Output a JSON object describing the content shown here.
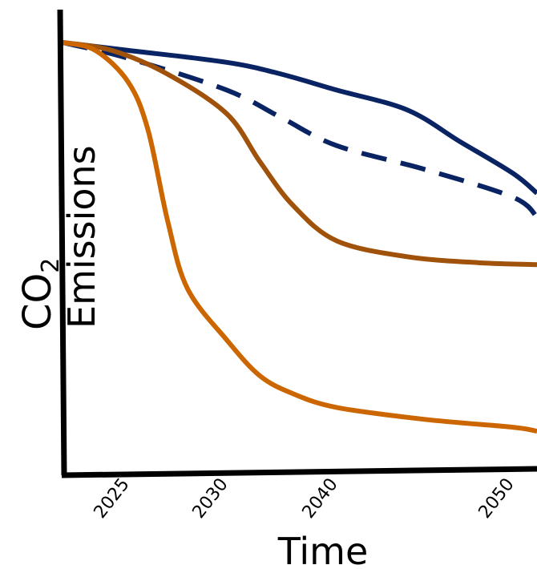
{
  "chart_data": {
    "type": "line",
    "xlabel": "Time",
    "ylabel_main": "CO",
    "ylabel_subscript": "2",
    "ylabel_secondary": "Emissions",
    "x_ticks": [
      "2025",
      "2030",
      "2040",
      "2050"
    ],
    "grid": false,
    "legend": "none",
    "series": [
      {
        "style": "solid",
        "color": "#0a2463",
        "points": [
          [
            2021,
            100
          ],
          [
            2025,
            98
          ],
          [
            2030,
            95
          ],
          [
            2035,
            92
          ],
          [
            2040,
            88
          ],
          [
            2044,
            83
          ],
          [
            2047,
            75
          ],
          [
            2050,
            67
          ],
          [
            2052,
            62
          ]
        ]
      },
      {
        "style": "dashed",
        "color": "#0a2463",
        "points": [
          [
            2021,
            100
          ],
          [
            2025,
            96
          ],
          [
            2030,
            88
          ],
          [
            2035,
            81
          ],
          [
            2040,
            74
          ],
          [
            2045,
            68
          ],
          [
            2050,
            61
          ],
          [
            2052,
            56
          ]
        ]
      },
      {
        "style": "solid",
        "color": "#a0520a",
        "points": [
          [
            2021,
            100
          ],
          [
            2024,
            98
          ],
          [
            2027,
            92
          ],
          [
            2030,
            82
          ],
          [
            2033,
            70
          ],
          [
            2036,
            59
          ],
          [
            2040,
            50
          ],
          [
            2044,
            46
          ],
          [
            2048,
            44.5
          ],
          [
            2052,
            44
          ]
        ]
      },
      {
        "style": "solid",
        "color": "#cc6600",
        "points": [
          [
            2021,
            100
          ],
          [
            2023,
            98
          ],
          [
            2025,
            90
          ],
          [
            2026,
            78
          ],
          [
            2027,
            55
          ],
          [
            2028,
            38
          ],
          [
            2030,
            25
          ],
          [
            2033,
            16
          ],
          [
            2036,
            11.5
          ],
          [
            2040,
            8
          ],
          [
            2045,
            5
          ],
          [
            2050,
            3
          ],
          [
            2052,
            2
          ]
        ]
      }
    ]
  }
}
